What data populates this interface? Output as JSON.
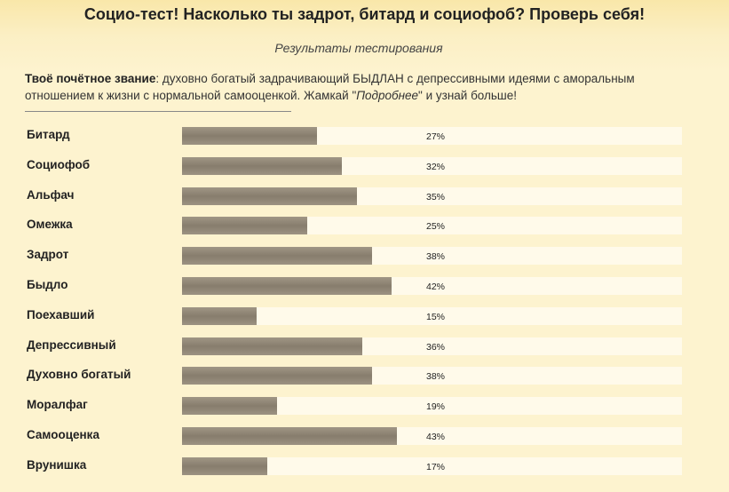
{
  "header": {
    "title": "Социо-тест! Насколько ты задрот, битард и социофоб? Проверь себя!",
    "subtitle": "Результаты тестирования"
  },
  "description": {
    "label": "Твоё почётное звание",
    "text_before": ": духовно богатый задрачивающий БЫДЛАН с депрессивными идеями с аморальным отношением к жизни с нормальной самооценкой. Жамкай \"",
    "italic": "Подробнее",
    "text_after": "\" и узнай больше!"
  },
  "results": [
    {
      "label": "Битард",
      "value": 27,
      "pct_text": "27%"
    },
    {
      "label": "Социофоб",
      "value": 32,
      "pct_text": "32%"
    },
    {
      "label": "Альфач",
      "value": 35,
      "pct_text": "35%"
    },
    {
      "label": "Омежка",
      "value": 25,
      "pct_text": "25%"
    },
    {
      "label": "Задрот",
      "value": 38,
      "pct_text": "38%"
    },
    {
      "label": "Быдло",
      "value": 42,
      "pct_text": "42%"
    },
    {
      "label": "Поехавший",
      "value": 15,
      "pct_text": "15%"
    },
    {
      "label": "Депрессивный",
      "value": 36,
      "pct_text": "36%"
    },
    {
      "label": "Духовно богатый",
      "value": 38,
      "pct_text": "38%"
    },
    {
      "label": "Моралфаг",
      "value": 19,
      "pct_text": "19%"
    },
    {
      "label": "Самооценка",
      "value": 43,
      "pct_text": "43%"
    },
    {
      "label": "Врунишка",
      "value": 17,
      "pct_text": "17%"
    }
  ],
  "colors": {
    "background": "#fdf3cf",
    "bar_fill": "#8f8574",
    "bar_track": "#fffaea"
  }
}
